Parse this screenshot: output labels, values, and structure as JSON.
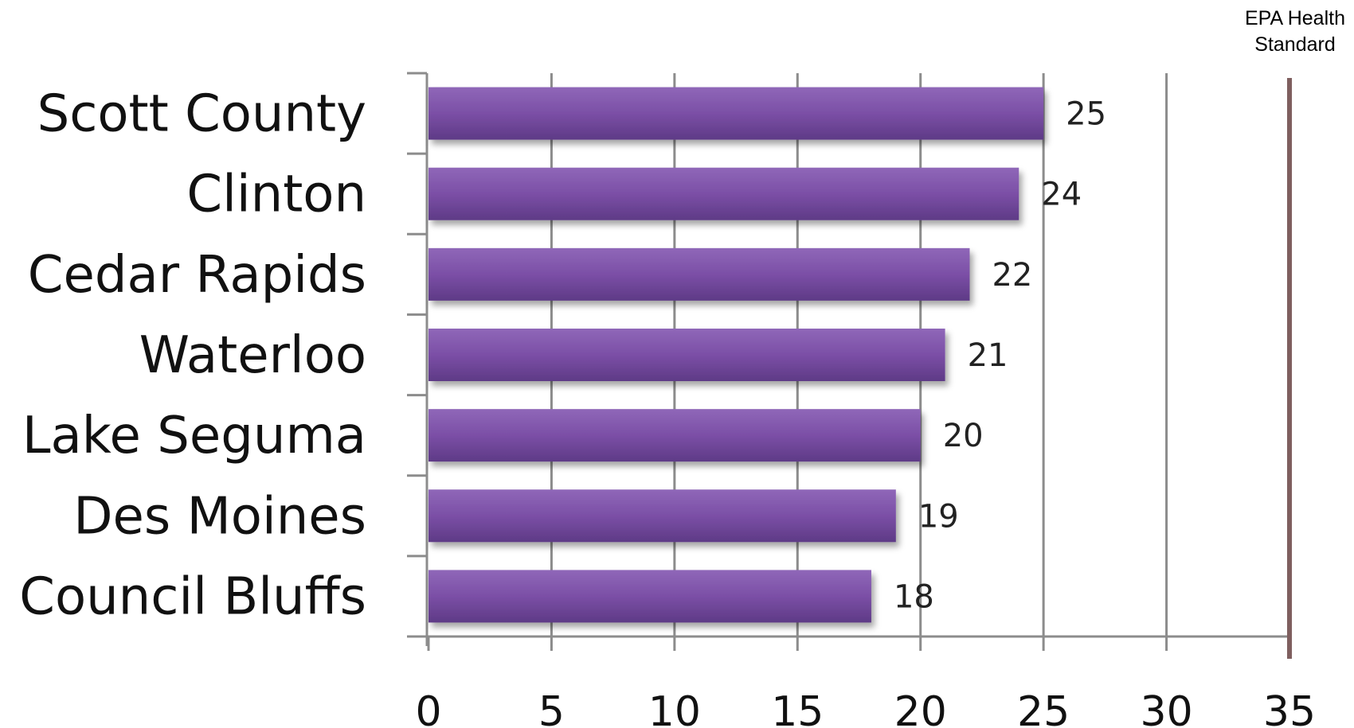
{
  "chart_data": {
    "type": "bar",
    "orientation": "horizontal",
    "categories": [
      "Scott County",
      "Clinton",
      "Cedar Rapids",
      "Waterloo",
      "Lake Seguma",
      "Des Moines",
      "Council Bluffs"
    ],
    "values": [
      25,
      24,
      22,
      21,
      20,
      19,
      18
    ],
    "data_labels": [
      "25",
      "24",
      "22",
      "21",
      "20",
      "19",
      "18"
    ],
    "xlim": [
      0,
      35
    ],
    "x_ticks": [
      0,
      5,
      10,
      15,
      20,
      25,
      30,
      35
    ],
    "x_tick_labels": [
      "0",
      "5",
      "10",
      "15",
      "20",
      "25",
      "30",
      "35"
    ],
    "grid": "vertical",
    "reference_line": {
      "value": 35,
      "label_lines": [
        "EPA Health",
        "Standard"
      ],
      "color": "#7f5f5f"
    },
    "bar_color": "#7b4fa6",
    "bar_color_light": "#8f67b8",
    "bar_color_dark": "#5e3a86",
    "grid_color": "#8c8c8c"
  }
}
